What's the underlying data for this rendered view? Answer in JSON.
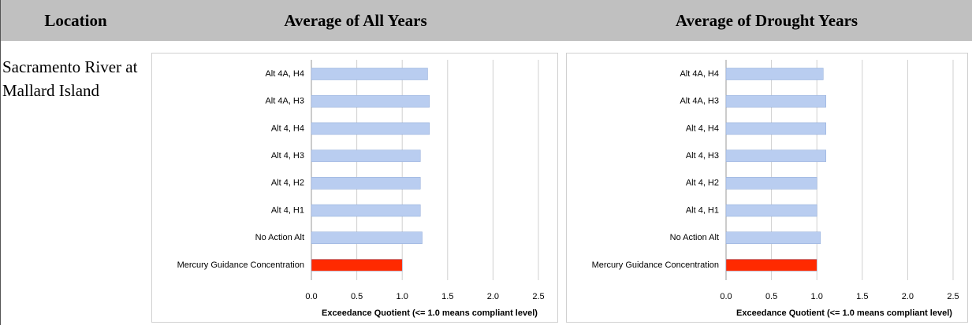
{
  "table": {
    "headers": [
      "Location",
      "Average of All Years",
      "Average of Drought Years"
    ],
    "rows": [
      [
        "Sacramento River at Mallard Island"
      ]
    ]
  },
  "chart_data": [
    {
      "type": "bar",
      "orientation": "horizontal",
      "categories": [
        "Alt 4A, H4",
        "Alt 4A, H3",
        "Alt 4, H4",
        "Alt 4, H3",
        "Alt 4, H2",
        "Alt 4, H1",
        "No Action Alt",
        "Mercury Guidance Concentration"
      ],
      "values": [
        1.28,
        1.3,
        1.3,
        1.2,
        1.2,
        1.2,
        1.22,
        1.0
      ],
      "colors": [
        "#b9cdf0",
        "#b9cdf0",
        "#b9cdf0",
        "#b9cdf0",
        "#b9cdf0",
        "#b9cdf0",
        "#b9cdf0",
        "#ff2a00"
      ],
      "xlabel": "Exceedance Quotient (<= 1.0 means compliant level)",
      "xlim": [
        0,
        2.5
      ],
      "xticks": [
        {
          "value": 0,
          "label": "0.0"
        },
        0.5,
        {
          "value": 1,
          "label": "1.0"
        },
        1.5,
        {
          "value": 2,
          "label": "2.0"
        },
        2.5
      ],
      "grid": true
    },
    {
      "type": "bar",
      "orientation": "horizontal",
      "categories": [
        "Alt 4A, H4",
        "Alt 4A, H3",
        "Alt 4, H4",
        "Alt 4, H3",
        "Alt 4, H2",
        "Alt 4, H1",
        "No Action Alt",
        "Mercury Guidance Concentration"
      ],
      "values": [
        1.07,
        1.1,
        1.1,
        1.1,
        1.0,
        1.0,
        1.04,
        1.0
      ],
      "colors": [
        "#b9cdf0",
        "#b9cdf0",
        "#b9cdf0",
        "#b9cdf0",
        "#b9cdf0",
        "#b9cdf0",
        "#b9cdf0",
        "#ff2a00"
      ],
      "xlabel": "Exceedance Quotient (<= 1.0 means compliant level)",
      "xlim": [
        0,
        2.5
      ],
      "xticks": [
        {
          "value": 0,
          "label": "0.0"
        },
        0.5,
        {
          "value": 1,
          "label": "1.0"
        },
        1.5,
        {
          "value": 2,
          "label": "2.0"
        },
        2.5
      ],
      "grid": true
    }
  ]
}
